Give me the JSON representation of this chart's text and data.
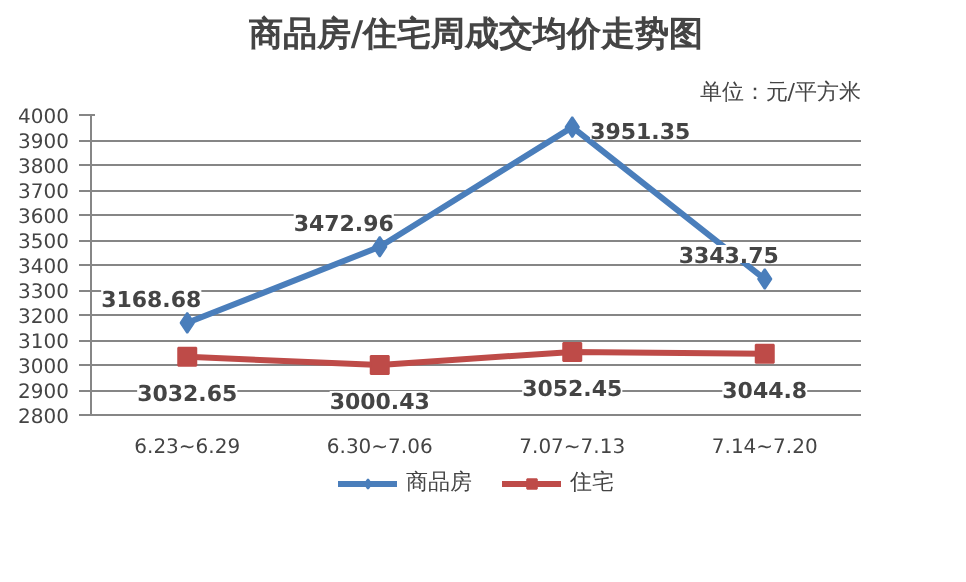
{
  "chart_data": {
    "type": "line",
    "title": "商品房/住宅周成交均价走势图",
    "annotations": [
      "单位：元/平方米"
    ],
    "categories": [
      "6.23~6.29",
      "6.30~7.06",
      "7.07~7.13",
      "7.14~7.20"
    ],
    "series": [
      {
        "name": "商品房",
        "color": "#4a7ebb",
        "marker": "diamond",
        "values": [
          3168.68,
          3472.96,
          3951.35,
          3343.75
        ]
      },
      {
        "name": "住宅",
        "color": "#be4b48",
        "marker": "square",
        "values": [
          3032.65,
          3000.43,
          3052.45,
          3044.8
        ]
      }
    ],
    "ylim": [
      2800,
      4000
    ],
    "yticks": [
      2800,
      2900,
      3000,
      3100,
      3200,
      3300,
      3400,
      3500,
      3600,
      3700,
      3800,
      3900,
      4000
    ],
    "grid": "y",
    "legend": "bottom",
    "data_labels": true,
    "line_style": "solid"
  }
}
